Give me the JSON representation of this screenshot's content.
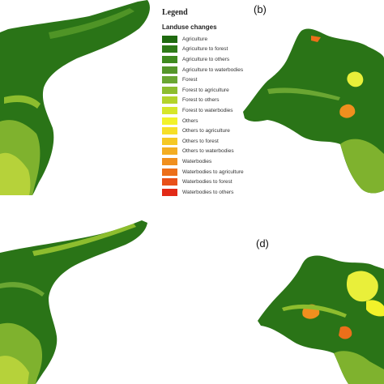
{
  "panel_labels": {
    "b": "(b)",
    "d": "(d)"
  },
  "legend": {
    "title": "Legend",
    "subtitle": "Landuse changes",
    "items": [
      {
        "label": "Agriculture",
        "color": "#1f6a10"
      },
      {
        "label": "Agriculture to forest",
        "color": "#2e7a18"
      },
      {
        "label": "Agriculture to others",
        "color": "#3f8a1f"
      },
      {
        "label": "Agriculture to waterbodies",
        "color": "#55962a"
      },
      {
        "label": "Forest",
        "color": "#6aa632"
      },
      {
        "label": "Forest to agriculture",
        "color": "#8dbd2e"
      },
      {
        "label": "Forest to others",
        "color": "#b3d32b"
      },
      {
        "label": "Forest to waterbodies",
        "color": "#d6e62a"
      },
      {
        "label": "Others",
        "color": "#f2f22a"
      },
      {
        "label": "Others to agriculture",
        "color": "#f6df27"
      },
      {
        "label": "Others to forest",
        "color": "#f5c824"
      },
      {
        "label": "Others to waterbodies",
        "color": "#f3ad22"
      },
      {
        "label": "Waterbodies",
        "color": "#f08f1e"
      },
      {
        "label": "Waterbodies to agriculture",
        "color": "#ec6f1a"
      },
      {
        "label": "Waterbodies to forest",
        "color": "#e85019"
      },
      {
        "label": "Waterbodies to others",
        "color": "#e22a17"
      }
    ]
  }
}
